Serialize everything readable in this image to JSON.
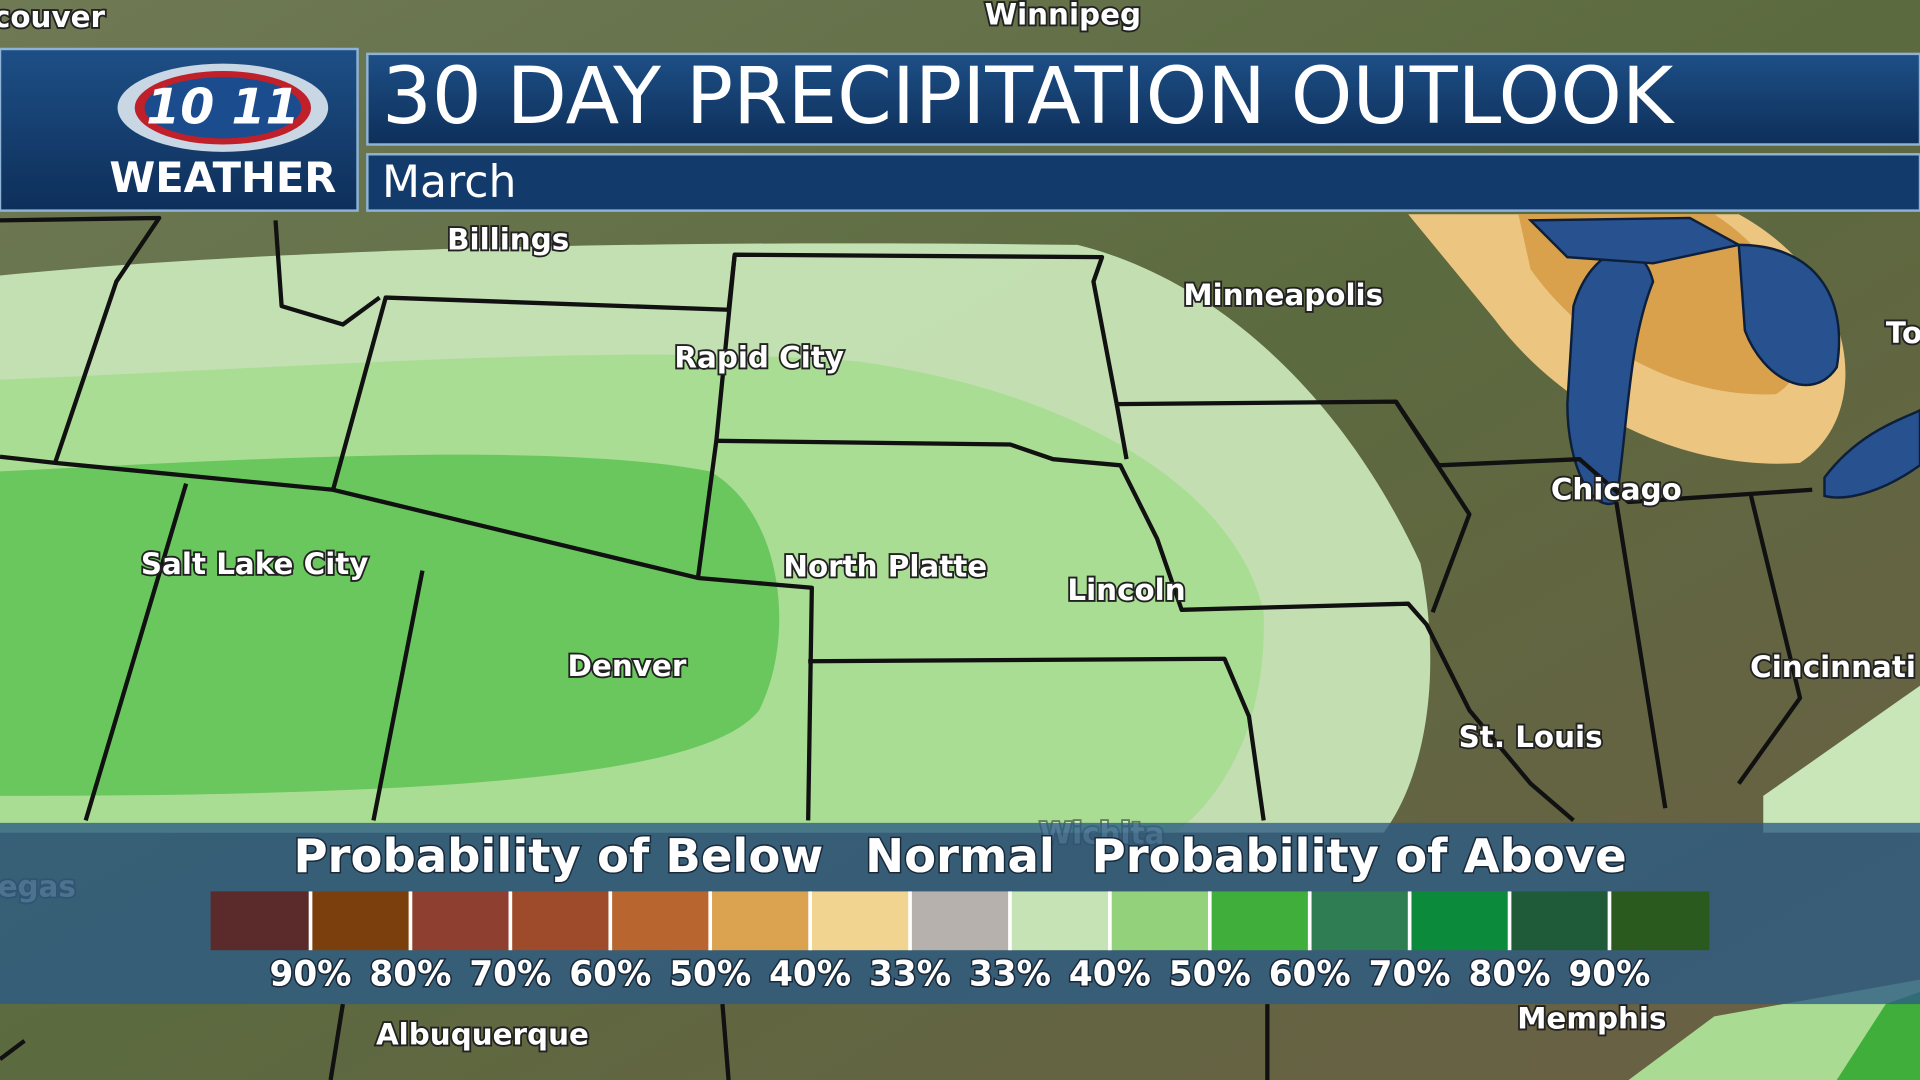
{
  "header": {
    "logo_number": "10 11",
    "logo_word": "WEATHER",
    "title": "30 DAY PRECIPITATION OUTLOOK",
    "subtitle": "March"
  },
  "cities": [
    "couver",
    "Winnipeg",
    "Billings",
    "Minneapolis",
    "Rapid City",
    "To",
    "Chicago",
    "Salt Lake City",
    "North Platte",
    "Lincoln",
    "Denver",
    "Cincinnati",
    "St. Louis",
    "Wichita",
    "egas",
    "Albuquerque",
    "Memphis"
  ],
  "legend": {
    "below_heading": "Probability of Below",
    "normal_heading": "Normal",
    "above_heading": "Probability of Above",
    "swatches": [
      "#5b2b2b",
      "#7b3f0e",
      "#8f3f30",
      "#9d4b2b",
      "#b9652f",
      "#dba24f",
      "#f0d48f",
      "#b6b1ac",
      "#c6e3b6",
      "#93d17b",
      "#40ae3b",
      "#2f7d52",
      "#0b8a3b",
      "#205b39",
      "#2b5a1f"
    ],
    "labels": [
      "90%",
      "80%",
      "70%",
      "60%",
      "50%",
      "40%",
      "33%",
      "33%",
      "40%",
      "50%",
      "60%",
      "70%",
      "80%",
      "90%"
    ]
  }
}
